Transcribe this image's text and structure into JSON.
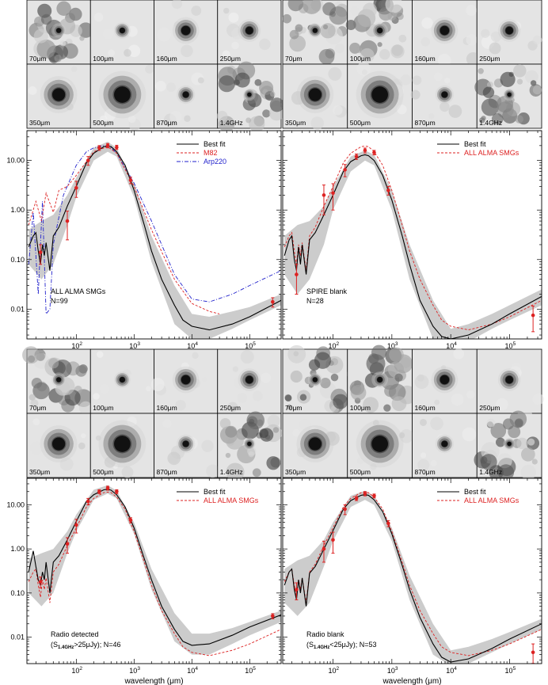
{
  "colors": {
    "best_fit": "#000000",
    "reference": "#dd2222",
    "arp220": "#2222cc",
    "band": "#cccccc",
    "points": "#dd2222"
  },
  "axes": {
    "xlabel": "wavelength (μm)",
    "x_ticks": [
      {
        "value": 100,
        "base": "10",
        "exp": "2"
      },
      {
        "value": 1000,
        "base": "10",
        "exp": "3"
      },
      {
        "value": 10000,
        "base": "10",
        "exp": "4"
      },
      {
        "value": 100000,
        "base": "10",
        "exp": "5"
      }
    ],
    "y_ticks": [
      "10.00",
      "1.00",
      "0.10",
      "0.01"
    ],
    "y_tick_values": [
      10,
      1,
      0.1,
      0.01
    ],
    "xlim": [
      14,
      350000
    ],
    "ylim": [
      0.0025,
      40
    ]
  },
  "chart_data": [
    {
      "type": "line",
      "id": "all",
      "thumbs": [
        "70μm",
        "100μm",
        "160μm",
        "250μm",
        "350μm",
        "500μm",
        "870μm",
        "1.4GHz"
      ],
      "legend": [
        "Best fit",
        "M82",
        "Arp220"
      ],
      "annotation": [
        "ALL ALMA SMGs",
        "N=99"
      ],
      "best_fit": {
        "x": [
          15,
          18,
          20,
          22,
          24,
          26,
          28,
          30,
          35,
          40,
          50,
          70,
          100,
          150,
          200,
          300,
          350,
          400,
          500,
          700,
          1000,
          1500,
          2000,
          3000,
          5000,
          7000,
          10000,
          20000,
          50000,
          100000,
          350000
        ],
        "y": [
          0.18,
          0.3,
          0.35,
          0.15,
          0.08,
          0.2,
          0.12,
          0.22,
          0.06,
          0.3,
          0.45,
          1.2,
          3.0,
          9.0,
          14.0,
          19.0,
          19.5,
          19.0,
          15.0,
          8.0,
          2.5,
          0.5,
          0.15,
          0.04,
          0.012,
          0.006,
          0.0045,
          0.0038,
          0.005,
          0.007,
          0.015
        ]
      },
      "band": {
        "x": [
          15,
          25,
          40,
          70,
          100,
          200,
          350,
          500,
          1000,
          2000,
          5000,
          10000,
          20000,
          50000,
          100000,
          350000
        ],
        "lo": [
          0.08,
          0.04,
          0.08,
          0.5,
          1.8,
          10,
          15,
          12,
          1.8,
          0.09,
          0.005,
          0.0025,
          0.0025,
          0.004,
          0.006,
          0.012
        ],
        "hi": [
          0.4,
          0.6,
          0.8,
          2.0,
          4.5,
          18,
          24,
          18,
          3.5,
          0.3,
          0.03,
          0.008,
          0.007,
          0.009,
          0.011,
          0.02
        ]
      },
      "reference": {
        "x": [
          15,
          20,
          25,
          30,
          40,
          50,
          70,
          100,
          200,
          350,
          500,
          1000,
          2000,
          5000,
          10000,
          20000,
          30000
        ],
        "y": [
          0.5,
          1.5,
          0.6,
          2.2,
          0.9,
          2.5,
          3.0,
          5.0,
          15.0,
          19.0,
          14.0,
          3.0,
          0.4,
          0.04,
          0.013,
          0.009,
          0.008
        ]
      },
      "arp220": {
        "x": [
          15,
          18,
          22,
          26,
          30,
          35,
          40,
          60,
          100,
          150,
          200,
          300,
          400,
          500,
          1000,
          2000,
          5000,
          10000,
          20000,
          50000,
          100000,
          350000
        ],
        "y": [
          0.08,
          0.9,
          0.02,
          1.5,
          0.008,
          0.01,
          0.2,
          2.0,
          8.0,
          15.0,
          18.0,
          20.0,
          18.0,
          14.0,
          3.5,
          0.6,
          0.05,
          0.016,
          0.014,
          0.02,
          0.03,
          0.06
        ]
      },
      "points": {
        "x": [
          24,
          70,
          100,
          160,
          250,
          350,
          500,
          870,
          250000
        ],
        "y": [
          0.14,
          0.6,
          2.8,
          10.0,
          18.0,
          20.0,
          18.5,
          4.0,
          0.014
        ],
        "err": [
          0.06,
          0.35,
          1.0,
          2.0,
          2.0,
          2.0,
          1.8,
          0.6,
          0.003
        ]
      }
    },
    {
      "type": "line",
      "id": "spire",
      "thumbs": [
        "70μm",
        "100μm",
        "160μm",
        "250μm",
        "350μm",
        "500μm",
        "870μm",
        "1.4GHz"
      ],
      "legend": [
        "Best fit",
        "ALL ALMA SMGs"
      ],
      "annotation": [
        "SPIRE blank",
        "N=28"
      ],
      "best_fit": {
        "x": [
          15,
          18,
          20,
          22,
          24,
          26,
          28,
          30,
          35,
          40,
          50,
          70,
          100,
          150,
          200,
          300,
          350,
          400,
          500,
          700,
          1000,
          1500,
          2000,
          3000,
          5000,
          7000,
          10000,
          20000,
          50000,
          100000,
          350000
        ],
        "y": [
          0.12,
          0.25,
          0.3,
          0.1,
          0.06,
          0.18,
          0.08,
          0.2,
          0.05,
          0.25,
          0.35,
          0.8,
          2.0,
          6.0,
          9.5,
          12.5,
          13.0,
          12.5,
          10.0,
          5.0,
          1.6,
          0.3,
          0.08,
          0.015,
          0.0045,
          0.0028,
          0.0025,
          0.003,
          0.005,
          0.008,
          0.018
        ]
      },
      "band": {
        "x": [
          15,
          25,
          40,
          70,
          100,
          200,
          350,
          500,
          1000,
          2000,
          5000,
          10000,
          20000,
          50000,
          100000,
          350000
        ],
        "lo": [
          0.05,
          0.02,
          0.04,
          0.2,
          1.0,
          6,
          10,
          8,
          1.0,
          0.04,
          0.0025,
          0.0018,
          0.0022,
          0.004,
          0.006,
          0.012
        ],
        "hi": [
          0.3,
          0.5,
          0.6,
          1.2,
          3.0,
          12,
          16,
          13,
          2.5,
          0.2,
          0.015,
          0.004,
          0.005,
          0.008,
          0.012,
          0.025
        ]
      },
      "reference": {
        "x": [
          15,
          18,
          20,
          22,
          24,
          26,
          28,
          30,
          35,
          40,
          50,
          70,
          100,
          150,
          200,
          300,
          350,
          400,
          500,
          700,
          1000,
          1500,
          2000,
          3000,
          5000,
          7000,
          10000,
          20000,
          50000,
          100000,
          350000
        ],
        "y": [
          0.18,
          0.3,
          0.35,
          0.15,
          0.08,
          0.2,
          0.12,
          0.22,
          0.06,
          0.3,
          0.45,
          1.2,
          3.0,
          9.0,
          14.0,
          19.0,
          19.5,
          19.0,
          15.0,
          8.0,
          2.5,
          0.5,
          0.15,
          0.04,
          0.012,
          0.006,
          0.0045,
          0.0038,
          0.005,
          0.007,
          0.015
        ]
      },
      "points": {
        "x": [
          24,
          70,
          100,
          160,
          250,
          350,
          500,
          870,
          250000
        ],
        "y": [
          0.05,
          2.0,
          2.2,
          6.5,
          12.0,
          16.0,
          14.5,
          2.5,
          0.0075
        ],
        "err": [
          0.03,
          1.2,
          1.2,
          1.8,
          1.5,
          1.8,
          1.5,
          0.5,
          0.004
        ]
      }
    },
    {
      "type": "line",
      "id": "radio-detected",
      "thumbs": [
        "70μm",
        "100μm",
        "160μm",
        "250μm",
        "350μm",
        "500μm",
        "870μm",
        "1.4GHz"
      ],
      "legend": [
        "Best fit",
        "ALL ALMA SMGs"
      ],
      "annotation": [
        "Radio detected",
        "(S",
        "1.4GHz",
        ">25μJy); N=46"
      ],
      "best_fit": {
        "x": [
          15,
          18,
          20,
          22,
          24,
          26,
          28,
          30,
          35,
          40,
          50,
          70,
          100,
          150,
          200,
          300,
          350,
          400,
          500,
          700,
          1000,
          1500,
          2000,
          3000,
          5000,
          7000,
          10000,
          20000,
          50000,
          100000,
          350000
        ],
        "y": [
          0.3,
          0.9,
          0.4,
          0.2,
          0.15,
          0.3,
          0.2,
          0.5,
          0.1,
          0.5,
          0.7,
          1.6,
          4.2,
          12.0,
          17.0,
          22.0,
          22.5,
          21.5,
          17.0,
          9.0,
          3.0,
          0.6,
          0.2,
          0.05,
          0.015,
          0.008,
          0.0065,
          0.007,
          0.011,
          0.017,
          0.032
        ]
      },
      "band": {
        "x": [
          15,
          25,
          40,
          70,
          100,
          200,
          350,
          500,
          1000,
          2000,
          5000,
          10000,
          20000,
          50000,
          100000,
          350000
        ],
        "lo": [
          0.1,
          0.05,
          0.1,
          0.8,
          2.5,
          13,
          18,
          14,
          2.2,
          0.12,
          0.008,
          0.004,
          0.004,
          0.007,
          0.011,
          0.022
        ],
        "hi": [
          0.6,
          0.8,
          1.0,
          2.5,
          6.0,
          22,
          28,
          21,
          4.0,
          0.35,
          0.035,
          0.012,
          0.012,
          0.016,
          0.022,
          0.04
        ]
      },
      "reference": {
        "x": [
          15,
          18,
          20,
          22,
          24,
          26,
          28,
          30,
          35,
          40,
          50,
          70,
          100,
          150,
          200,
          300,
          350,
          400,
          500,
          700,
          1000,
          1500,
          2000,
          3000,
          5000,
          7000,
          10000,
          20000,
          50000,
          100000,
          350000
        ],
        "y": [
          0.18,
          0.3,
          0.35,
          0.15,
          0.08,
          0.2,
          0.12,
          0.22,
          0.06,
          0.3,
          0.45,
          1.2,
          3.0,
          9.0,
          14.0,
          19.0,
          19.5,
          19.0,
          15.0,
          8.0,
          2.5,
          0.5,
          0.15,
          0.04,
          0.012,
          0.006,
          0.0045,
          0.0038,
          0.005,
          0.007,
          0.015
        ]
      },
      "points": {
        "x": [
          24,
          70,
          100,
          160,
          250,
          350,
          500,
          870,
          250000
        ],
        "y": [
          0.18,
          1.3,
          3.5,
          12.0,
          20.0,
          24.0,
          20.0,
          4.5,
          0.03
        ],
        "err": [
          0.05,
          0.5,
          1.2,
          2.0,
          2.0,
          2.5,
          2.0,
          0.6,
          0.004
        ]
      }
    },
    {
      "type": "line",
      "id": "radio-blank",
      "thumbs": [
        "70μm",
        "100μm",
        "160μm",
        "250μm",
        "350μm",
        "500μm",
        "870μm",
        "1.4GHz"
      ],
      "legend": [
        "Best fit",
        "ALL ALMA SMGs"
      ],
      "annotation": [
        "Radio blank",
        "(S",
        "1.4GHz",
        "<25μJy); N=53"
      ],
      "best_fit": {
        "x": [
          15,
          18,
          20,
          22,
          24,
          26,
          28,
          30,
          35,
          40,
          50,
          70,
          100,
          150,
          200,
          300,
          350,
          400,
          500,
          700,
          1000,
          1500,
          2000,
          3000,
          5000,
          7000,
          10000,
          20000,
          50000,
          100000,
          350000
        ],
        "y": [
          0.15,
          0.3,
          0.35,
          0.12,
          0.07,
          0.2,
          0.1,
          0.22,
          0.05,
          0.28,
          0.4,
          1.0,
          2.6,
          8.0,
          12.5,
          16.5,
          17.0,
          16.5,
          13.0,
          7.0,
          2.2,
          0.42,
          0.12,
          0.028,
          0.007,
          0.0035,
          0.0027,
          0.0032,
          0.0055,
          0.009,
          0.02
        ]
      },
      "band": {
        "x": [
          15,
          25,
          40,
          70,
          100,
          200,
          350,
          500,
          1000,
          2000,
          5000,
          10000,
          20000,
          50000,
          100000,
          350000
        ],
        "lo": [
          0.06,
          0.03,
          0.06,
          0.4,
          1.5,
          9,
          13,
          10,
          1.5,
          0.07,
          0.004,
          0.0022,
          0.0025,
          0.0045,
          0.007,
          0.015
        ],
        "hi": [
          0.35,
          0.55,
          0.7,
          1.6,
          4.0,
          16,
          21,
          16,
          3.0,
          0.25,
          0.02,
          0.005,
          0.006,
          0.009,
          0.013,
          0.026
        ]
      },
      "reference": {
        "x": [
          15,
          18,
          20,
          22,
          24,
          26,
          28,
          30,
          35,
          40,
          50,
          70,
          100,
          150,
          200,
          300,
          350,
          400,
          500,
          700,
          1000,
          1500,
          2000,
          3000,
          5000,
          7000,
          10000,
          20000,
          50000,
          100000,
          350000
        ],
        "y": [
          0.18,
          0.3,
          0.35,
          0.15,
          0.08,
          0.2,
          0.12,
          0.22,
          0.06,
          0.3,
          0.45,
          1.2,
          3.0,
          9.0,
          14.0,
          19.0,
          19.5,
          19.0,
          15.0,
          8.0,
          2.5,
          0.5,
          0.15,
          0.04,
          0.012,
          0.006,
          0.0045,
          0.0038,
          0.005,
          0.007,
          0.015
        ]
      },
      "points": {
        "x": [
          24,
          70,
          100,
          160,
          250,
          350,
          500,
          870,
          250000
        ],
        "y": [
          0.12,
          1.0,
          1.6,
          8.0,
          14.0,
          18.0,
          16.0,
          3.8,
          0.0045
        ],
        "err": [
          0.05,
          0.5,
          0.8,
          2.0,
          1.5,
          2.0,
          1.6,
          0.6,
          0.0025
        ]
      }
    }
  ]
}
